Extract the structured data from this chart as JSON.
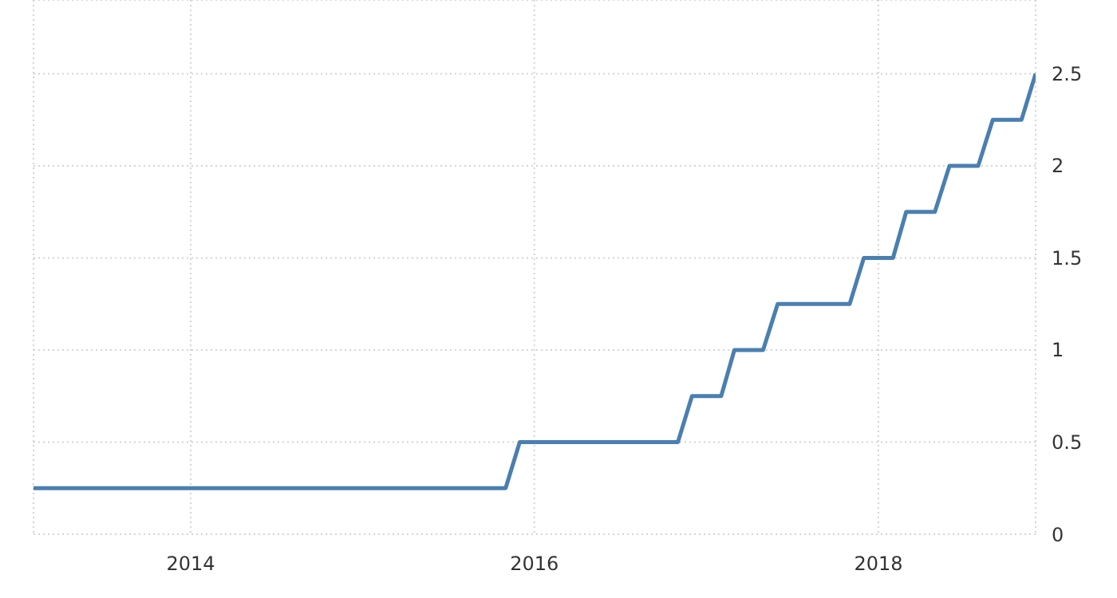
{
  "chart_data": {
    "type": "line",
    "x": [
      "2013-02",
      "2015-11",
      "2015-12",
      "2016-11",
      "2016-12",
      "2017-02",
      "2017-03",
      "2017-05",
      "2017-06",
      "2017-11",
      "2017-12",
      "2018-02",
      "2018-03",
      "2018-05",
      "2018-06",
      "2018-08",
      "2018-09",
      "2018-11",
      "2018-12"
    ],
    "series": [
      {
        "color": "#4a7fb0",
        "values": [
          0.25,
          0.25,
          0.5,
          0.5,
          0.75,
          0.75,
          1,
          1,
          1.25,
          1.25,
          1.5,
          1.5,
          1.75,
          1.75,
          2,
          2,
          2.25,
          2.25,
          2.5
        ]
      }
    ],
    "xlim": [
      "2013-02",
      "2018-12"
    ],
    "xticks": [
      {
        "value": "2014",
        "label": "2014"
      },
      {
        "value": "2016",
        "label": "2016"
      },
      {
        "value": "2018",
        "label": "2018"
      }
    ],
    "ylim": [
      0,
      2.9
    ],
    "yticks": [
      0,
      0.5,
      1,
      1.5,
      2,
      2.5
    ],
    "grid": true,
    "legend": false,
    "marker": "none",
    "line_style": "solid"
  }
}
